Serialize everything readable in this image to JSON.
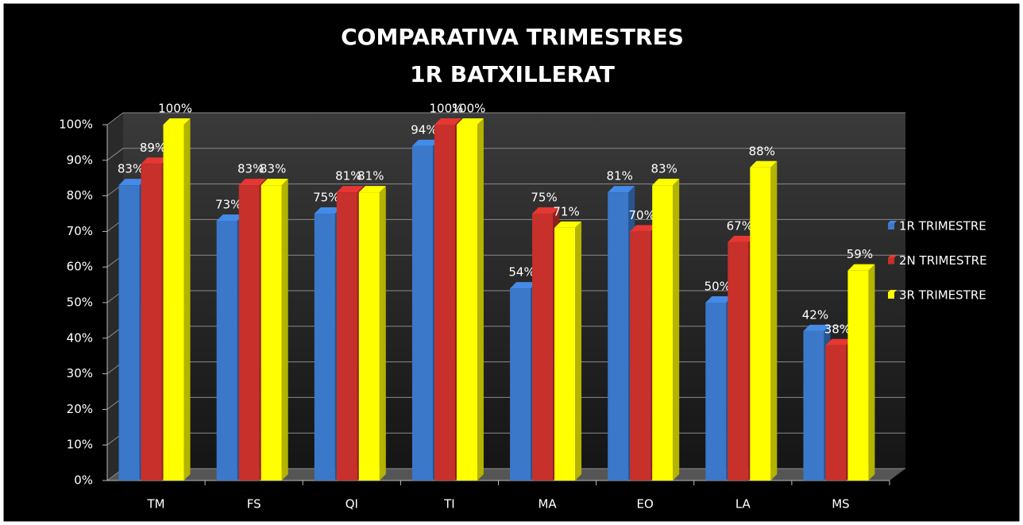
{
  "chart_data": {
    "type": "bar3d",
    "title": "COMPARATIVA  TRIMESTRES",
    "subtitle": "1R  BATXILLERAT",
    "categories": [
      "TM",
      "FS",
      "QI",
      "TI",
      "MA",
      "EO",
      "LA",
      "MS"
    ],
    "series": [
      {
        "name": "1R  TRIMESTRE",
        "color": "#3b78c9",
        "values": [
          83,
          73,
          75,
          94,
          54,
          81,
          50,
          42
        ],
        "value_labels": [
          "83%",
          "73%",
          "75%",
          "94%",
          "54%",
          "81%",
          "50%",
          "42%"
        ]
      },
      {
        "name": "2N  TRIMESTRE",
        "color": "#c8302c",
        "values": [
          89,
          83,
          81,
          100,
          75,
          70,
          67,
          38
        ],
        "value_labels": [
          "89%",
          "83%",
          "81%",
          "100%",
          "75%",
          "70%",
          "67%",
          "38%"
        ]
      },
      {
        "name": "3R  TRIMESTRE",
        "color": "#ffff00",
        "values": [
          100,
          83,
          81,
          100,
          71,
          83,
          88,
          59
        ],
        "value_labels": [
          "100%",
          "83%",
          "81%",
          "100%",
          "71%",
          "83%",
          "88%",
          "59%"
        ]
      }
    ],
    "ylim": [
      0,
      100
    ],
    "yticks": [
      {
        "value": 0,
        "label": "0%"
      },
      {
        "value": 10,
        "label": "10%"
      },
      {
        "value": 20,
        "label": "20%"
      },
      {
        "value": 30,
        "label": "30%"
      },
      {
        "value": 40,
        "label": "40%"
      },
      {
        "value": 50,
        "label": "50%"
      },
      {
        "value": 60,
        "label": "60%"
      },
      {
        "value": 70,
        "label": "70%"
      },
      {
        "value": 80,
        "label": "80%"
      },
      {
        "value": 90,
        "label": "90%"
      },
      {
        "value": 100,
        "label": "100%"
      }
    ],
    "grid": true,
    "legend": "right"
  }
}
